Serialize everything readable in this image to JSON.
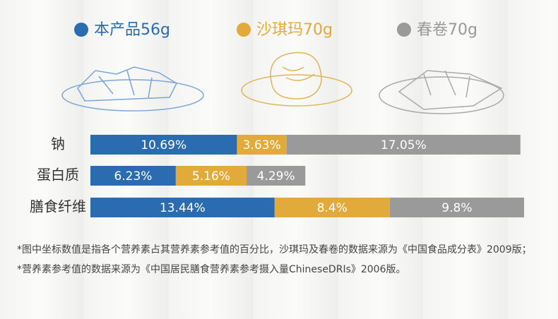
{
  "chart_data": {
    "type": "bar",
    "orientation": "horizontal",
    "stacked": true,
    "categories": [
      "钠",
      "蛋白质",
      "膳食纤维"
    ],
    "series": [
      {
        "name": "本产品56g",
        "color": "#2b6cb0",
        "values": [
          10.69,
          6.23,
          13.44
        ],
        "value_labels": [
          "10.69%",
          "6.23%",
          "13.44%"
        ]
      },
      {
        "name": "沙琪玛70g",
        "color": "#e2a93b",
        "values": [
          3.63,
          5.16,
          8.4
        ],
        "value_labels": [
          "3.63%",
          "5.16%",
          "8.4%"
        ]
      },
      {
        "name": "春卷70g",
        "color": "#9a9a9a",
        "values": [
          17.05,
          4.29,
          9.8
        ],
        "value_labels": [
          "17.05%",
          "4.29%",
          "9.8%"
        ]
      }
    ],
    "notes": [
      "*图中坐标数值是指各个营养素占其营养素参考值的百分比，沙琪玛及春卷的数据来源为《中国食品成分表》2009版；",
      "*营养素参考值的数据来源为《中国居民膳食营养素参考摄入量ChineseDRIs》2006版。"
    ]
  }
}
